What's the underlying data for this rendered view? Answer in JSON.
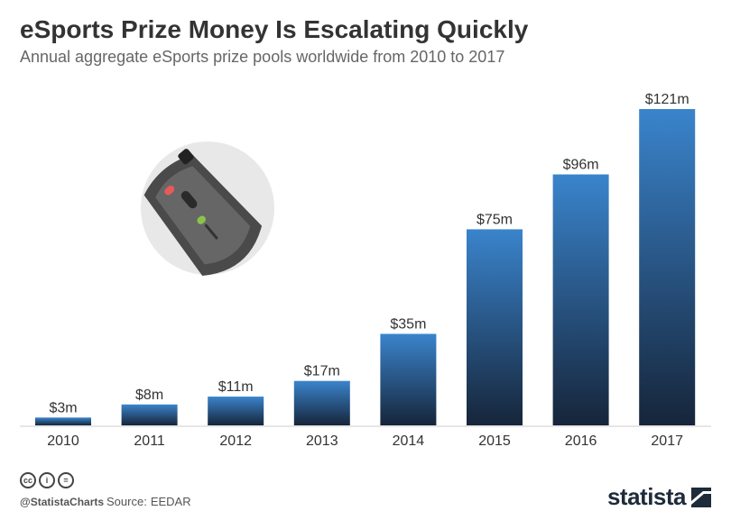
{
  "chart_data": {
    "type": "bar",
    "title": "eSports Prize Money Is Escalating Quickly",
    "subtitle": "Annual aggregate eSports prize pools worldwide from 2010 to 2017",
    "categories": [
      "2010",
      "2011",
      "2012",
      "2013",
      "2014",
      "2015",
      "2016",
      "2017"
    ],
    "values": [
      3,
      8,
      11,
      17,
      35,
      75,
      96,
      121
    ],
    "data_labels": [
      "$3m",
      "$8m",
      "$11m",
      "$17m",
      "$35m",
      "$75m",
      "$96m",
      "$121m"
    ],
    "ylim": [
      0,
      121
    ],
    "grid": false,
    "colors": {
      "bar_top": "#3a84cc",
      "bar_bottom": "#16253a"
    }
  },
  "illustration": {
    "icon": "gaming-mouse-icon"
  },
  "footer": {
    "license_icons": [
      "cc-icon",
      "by-icon",
      "nd-icon"
    ],
    "license_glyphs": [
      "cc",
      "i",
      "="
    ],
    "handle": "@StatistaCharts",
    "source_label": "Source:",
    "source": "EEDAR",
    "brand": "statista"
  }
}
